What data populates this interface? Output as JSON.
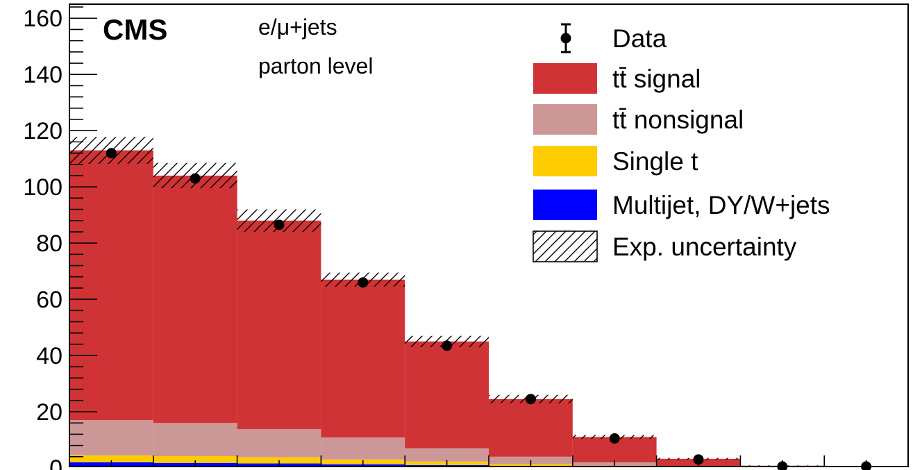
{
  "chart_data": {
    "type": "bar",
    "stacked": true,
    "experiment_label": "CMS",
    "annotations": [
      "e/μ+jets",
      "parton level"
    ],
    "ylim": [
      0,
      165
    ],
    "y_major_ticks": [
      20,
      40,
      60,
      80,
      100,
      120,
      140,
      160
    ],
    "y_visible_tick_labels": [
      "0",
      "20",
      "40",
      "60",
      "80",
      "100",
      "120",
      "140",
      "160"
    ],
    "bins": 10,
    "colors": {
      "signal": "#d03335",
      "nonsignal": "#cc9797",
      "single_t": "#ffcc00",
      "multijet": "#0000ff",
      "data": "#000000"
    },
    "series": [
      {
        "name": "Multijet, DY/W+jets",
        "values": [
          2.0,
          1.8,
          1.6,
          1.3,
          1.0,
          0.6,
          0.3,
          0.1,
          0.05,
          0.0
        ]
      },
      {
        "name": "Single t",
        "values": [
          2.5,
          2.4,
          2.2,
          1.7,
          1.3,
          0.7,
          0.4,
          0.15,
          0.05,
          0.0
        ]
      },
      {
        "name": "tt̄ nonsignal",
        "values": [
          12.5,
          11.8,
          10.0,
          7.8,
          4.7,
          2.7,
          1.3,
          0.5,
          0.2,
          0.0
        ]
      },
      {
        "name": "tt̄ signal",
        "values": [
          96.0,
          88.0,
          74.2,
          56.2,
          38.0,
          20.5,
          9.0,
          2.5,
          0.5,
          0.1
        ]
      }
    ],
    "uncertainty": [
      4.8,
      4.5,
      4.0,
      2.5,
      2.0,
      1.5,
      0.7,
      0.3,
      0.1,
      0.0
    ],
    "data_points": [
      112,
      103,
      86.5,
      66,
      43.5,
      24.5,
      10.5,
      3,
      0.5,
      0
    ],
    "legend": {
      "position": "top-right",
      "entries": [
        {
          "label": "Data",
          "kind": "marker"
        },
        {
          "label": "tt̄ signal",
          "kind": "fill",
          "color": "#d03335"
        },
        {
          "label": "tt̄ nonsignal",
          "kind": "fill",
          "color": "#cc9797"
        },
        {
          "label": "Single t",
          "kind": "fill",
          "color": "#ffcc00"
        },
        {
          "label": "Multijet, DY/W+jets",
          "kind": "fill",
          "color": "#0000ff"
        },
        {
          "label": "Exp. uncertainty",
          "kind": "hatch"
        }
      ]
    },
    "grid": false
  }
}
